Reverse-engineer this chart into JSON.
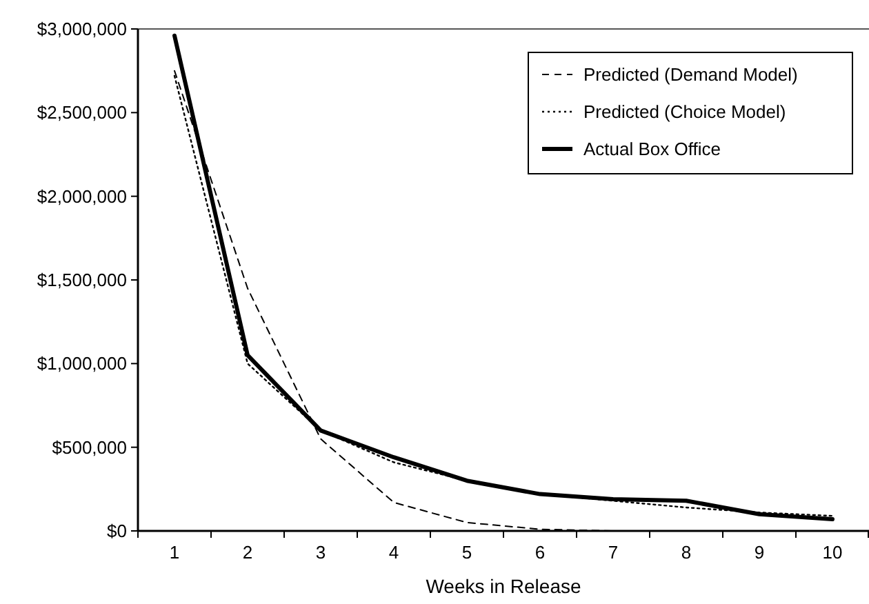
{
  "chart_data": {
    "type": "line",
    "xlabel": "Weeks in Release",
    "categories": [
      "1",
      "2",
      "3",
      "4",
      "5",
      "6",
      "7",
      "8",
      "9",
      "10"
    ],
    "series": [
      {
        "name": "Predicted (Demand Model)",
        "color": "#000000",
        "line_style": "dashed",
        "values": [
          2750000,
          1450000,
          550000,
          170000,
          50000,
          10000,
          0,
          0,
          0,
          0
        ]
      },
      {
        "name": "Predicted (Choice Model)",
        "color": "#000000",
        "line_style": "dotted",
        "values": [
          2720000,
          1000000,
          600000,
          410000,
          300000,
          220000,
          180000,
          140000,
          110000,
          90000
        ]
      },
      {
        "name": "Actual Box Office",
        "color": "#000000",
        "line_style": "solid",
        "values": [
          2960000,
          1050000,
          600000,
          440000,
          300000,
          220000,
          190000,
          180000,
          100000,
          70000
        ]
      }
    ],
    "ylim": [
      0,
      3000000
    ],
    "yticks": [
      {
        "value": 0,
        "label": "$0"
      },
      {
        "value": 500000,
        "label": "$500,000"
      },
      {
        "value": 1000000,
        "label": "$1,000,000"
      },
      {
        "value": 1500000,
        "label": "$1,500,000"
      },
      {
        "value": 2000000,
        "label": "$2,000,000"
      },
      {
        "value": 2500000,
        "label": "$2,500,000"
      },
      {
        "value": 3000000,
        "label": "$3,000,000"
      }
    ],
    "grid": false,
    "legend": "top right",
    "marker": "none"
  }
}
